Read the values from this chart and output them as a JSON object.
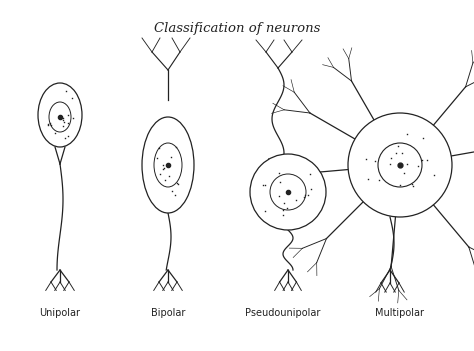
{
  "title": "Classification of neurons",
  "labels": [
    "Unipolar",
    "Bipolar",
    "Pseudounipolar",
    "Multipolar"
  ],
  "bg_color": "#ffffff",
  "line_color": "#222222",
  "title_fontsize": 9.5,
  "label_fontsize": 7
}
